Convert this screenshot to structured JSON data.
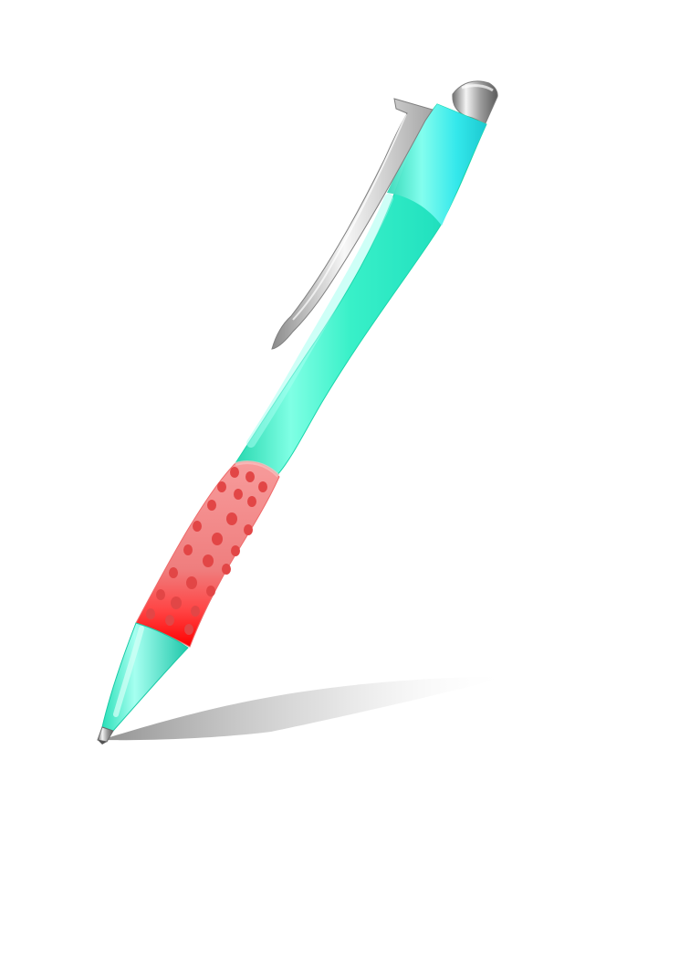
{
  "scene": {
    "subject": "pen-icon",
    "colors": {
      "background": "#ffffff",
      "barrel": "#2ff0c0",
      "barrel_highlight": "#7fffe6",
      "barrel_shade": "#1fd7b0",
      "grip": "#f07a7a",
      "grip_dark": "#ff1010",
      "grip_dot": "#e24848",
      "metal": "#c9c9c9",
      "metal_dark": "#7a7a7a",
      "shadow": "#8c8c8c"
    }
  }
}
